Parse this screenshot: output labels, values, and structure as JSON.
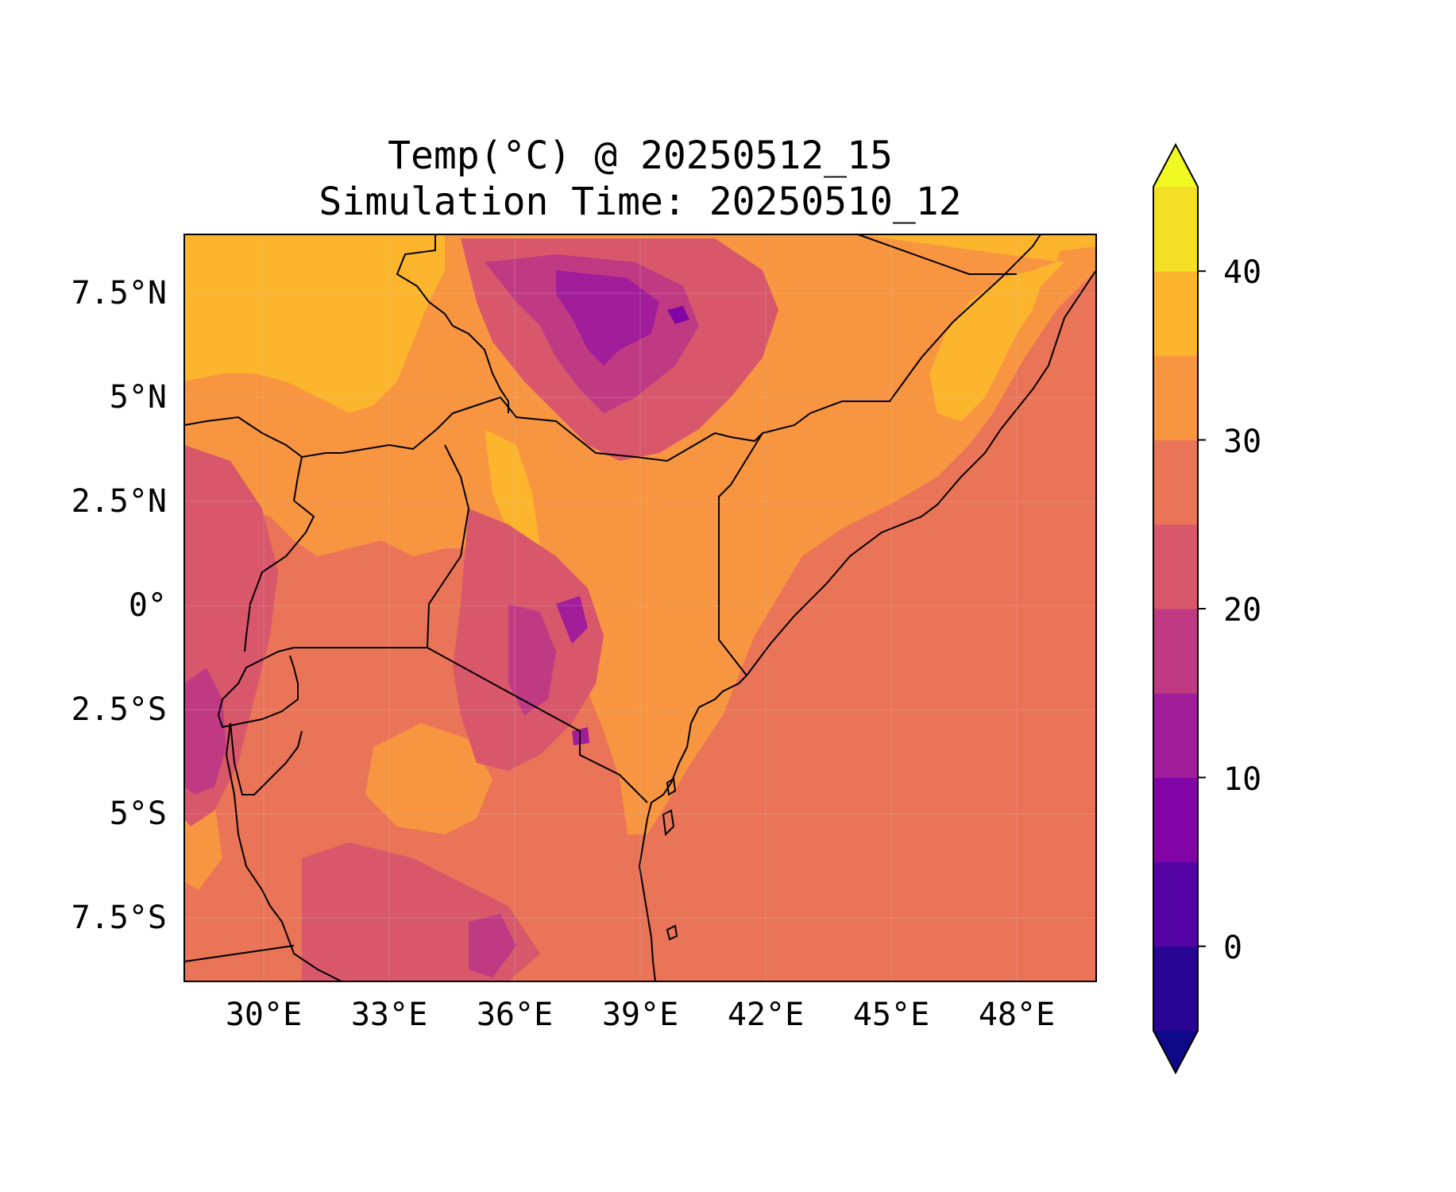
{
  "title": {
    "line1": "Temp(°C) @ 20250512_15",
    "line2": "Simulation Time: 20250510_12"
  },
  "map": {
    "lat_ticks": [
      "7.5°N",
      "5°N",
      "2.5°N",
      "0°",
      "2.5°S",
      "5°S",
      "7.5°S"
    ],
    "lon_ticks": [
      "30°E",
      "33°E",
      "36°E",
      "39°E",
      "42°E",
      "45°E",
      "48°E"
    ],
    "extent": {
      "lon": [
        28.2,
        50.0
      ],
      "lat": [
        -9.0,
        8.9
      ]
    },
    "field": "Temperature (°C), filled contours",
    "ocean_value_band": [
      25,
      30
    ]
  },
  "colorbar": {
    "tick_labels": [
      "0",
      "10",
      "20",
      "30",
      "40"
    ],
    "levels": [
      -5,
      0,
      5,
      10,
      15,
      20,
      25,
      30,
      35,
      40,
      45
    ],
    "colors": [
      "#0d0887",
      "#290593",
      "#5302a3",
      "#8104a7",
      "#a21d9a",
      "#c03a83",
      "#d8576b",
      "#ea7457",
      "#f89540",
      "#fdb52e",
      "#f3e026",
      "#f0f921"
    ],
    "extend": "both"
  }
}
